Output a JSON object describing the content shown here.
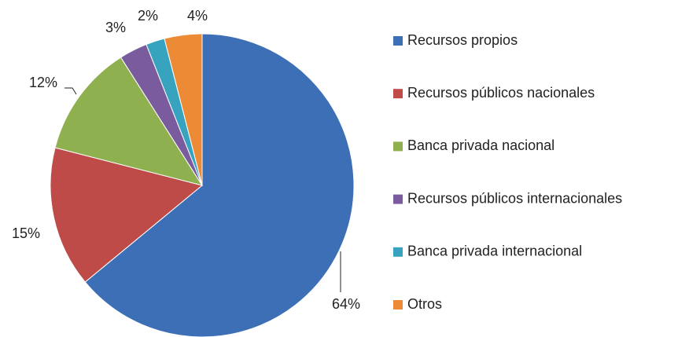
{
  "chart_data": {
    "type": "pie",
    "categories": [
      "Recursos propios",
      "Recursos públicos nacionales",
      "Banca privada nacional",
      "Recursos públicos internacionales",
      "Banca privada internacional",
      "Otros"
    ],
    "values": [
      64,
      15,
      12,
      3,
      2,
      4
    ],
    "value_labels": [
      "64%",
      "15%",
      "12%",
      "3%",
      "2%",
      "4%"
    ],
    "colors": [
      "#3d6fb6",
      "#be4b48",
      "#8fb04f",
      "#7a5c9e",
      "#38a3bf",
      "#ec8a35"
    ],
    "legend": "right"
  }
}
